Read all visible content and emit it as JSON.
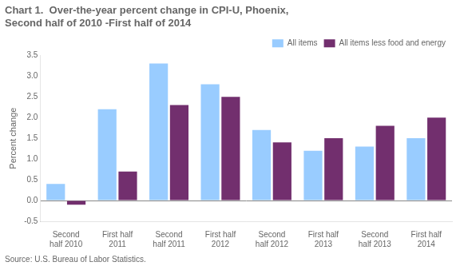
{
  "chart_data": {
    "type": "bar",
    "title": "Chart 1.  Over-the-year percent change in CPI-U, Phoenix,\nSecond half of 2010 -First half of 2014",
    "categories": [
      "Second\nhalf 2010",
      "First half\n2011",
      "Second\nhalf 2011",
      "First half\n2012",
      "Second\nhalf 2012",
      "First half\n2013",
      "Second\nhalf 2013",
      "First half\n2014"
    ],
    "series": [
      {
        "name": "All items",
        "color": "#99ccff",
        "values": [
          0.4,
          2.2,
          3.3,
          2.8,
          1.7,
          1.2,
          1.3,
          1.5
        ]
      },
      {
        "name": "All items less food and energy",
        "color": "#722f6e",
        "values": [
          -0.1,
          0.7,
          2.3,
          2.5,
          1.4,
          1.5,
          1.8,
          2.0
        ]
      }
    ],
    "y_label": "Percent change",
    "annotations": [
      "Source: U.S. Bureau of Labor Statistics."
    ],
    "ylim": [
      -0.5,
      3.5
    ],
    "yticks": [
      -0.5,
      {
        "value": 0.0,
        "label": "0.0"
      },
      0.5,
      {
        "value": 1.0,
        "label": "1.0"
      },
      1.5,
      {
        "value": 2.0,
        "label": "2.0"
      },
      2.5,
      {
        "value": 3.0,
        "label": "3.0"
      },
      3.5
    ],
    "grid": false,
    "legend": "upper right"
  }
}
